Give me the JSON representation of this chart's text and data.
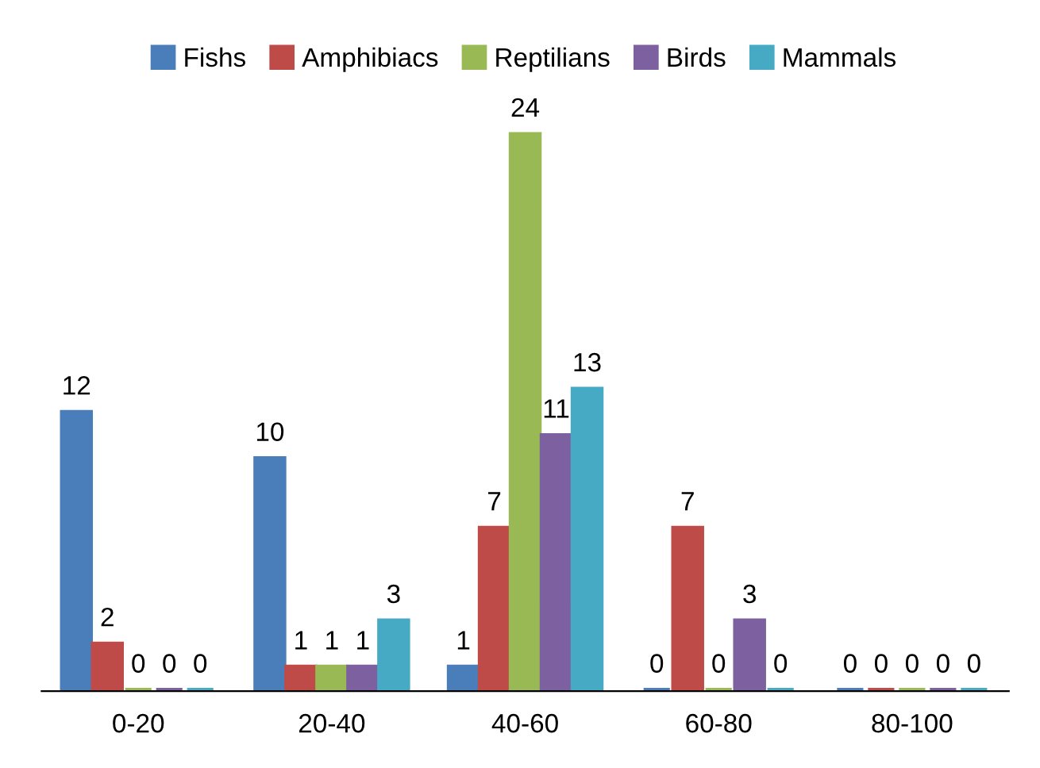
{
  "chart_data": {
    "type": "bar",
    "categories": [
      "0-20",
      "20-40",
      "40-60",
      "60-80",
      "80-100"
    ],
    "series": [
      {
        "name": "Fishs",
        "color": "#4a7ebb",
        "values": [
          12,
          10,
          1,
          0,
          0
        ]
      },
      {
        "name": "Amphibiacs",
        "color": "#be4b48",
        "values": [
          2,
          1,
          7,
          7,
          0
        ]
      },
      {
        "name": "Reptilians",
        "color": "#98b954",
        "values": [
          0,
          1,
          24,
          0,
          0
        ]
      },
      {
        "name": "Birds",
        "color": "#7d60a0",
        "values": [
          0,
          1,
          11,
          3,
          0
        ]
      },
      {
        "name": "Mammals",
        "color": "#46aac5",
        "values": [
          0,
          3,
          13,
          0,
          0
        ]
      }
    ],
    "data_labels": true,
    "legend": "top",
    "grid": false,
    "tick_labels": "x"
  }
}
